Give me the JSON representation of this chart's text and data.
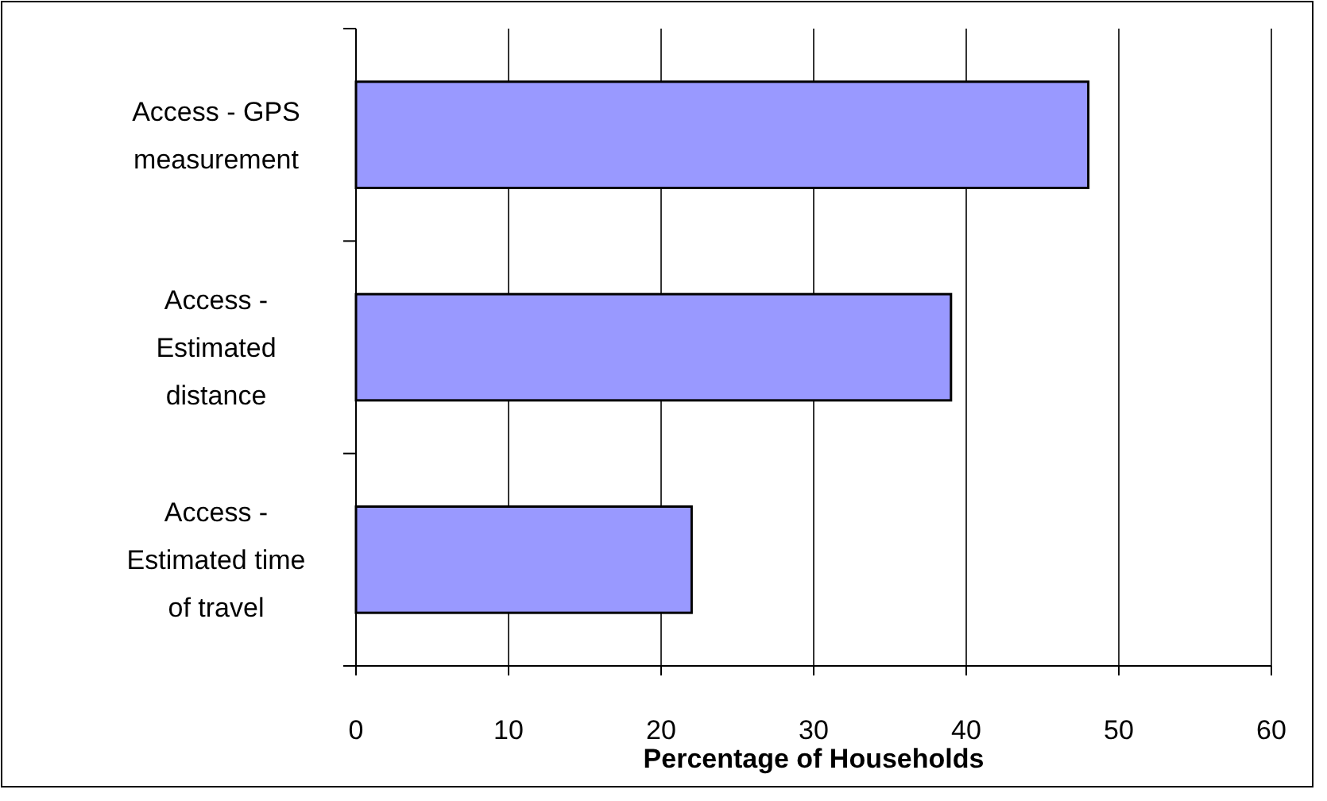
{
  "chart_data": {
    "type": "bar",
    "orientation": "horizontal",
    "xlabel": "Percentage of Households",
    "categories": [
      "Access - GPS measurement",
      "Access - Estimated distance",
      "Access - Estimated time of travel"
    ],
    "values": [
      48,
      39,
      22
    ],
    "color": "#9999ff",
    "xlim": [
      0,
      60
    ],
    "xticks": [
      0,
      10,
      20,
      30,
      40,
      50,
      60
    ],
    "grid": "x"
  }
}
